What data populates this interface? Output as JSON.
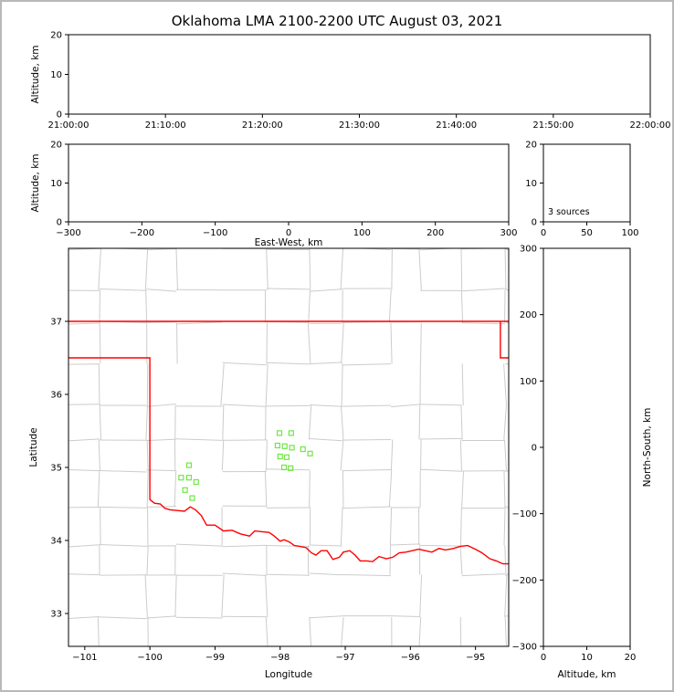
{
  "title": "Oklahoma LMA 2100-2200 UTC August 03, 2021",
  "colors": {
    "axis": "#000000",
    "state_border": "#ff0000",
    "county_lines": "#cccccc",
    "source_marker": "#70e645",
    "frame_border": "#b8b8b8",
    "background": "#ffffff"
  },
  "chart_data": [
    {
      "id": "time_height",
      "type": "scatter",
      "xlabel": "",
      "ylabel": "Altitude, km",
      "xlim": [
        0,
        6
      ],
      "xticks": [
        0,
        1,
        2,
        3,
        4,
        5,
        6
      ],
      "xtick_labels": [
        "21:00:00",
        "21:10:00",
        "21:20:00",
        "21:30:00",
        "21:40:00",
        "21:50:00",
        "22:00:00"
      ],
      "ylim": [
        0,
        20
      ],
      "yticks": [
        0,
        10,
        20
      ],
      "points": []
    },
    {
      "id": "ew_height",
      "type": "scatter",
      "xlabel": "East-West, km",
      "ylabel": "Altitude, km",
      "xlim": [
        -300,
        300
      ],
      "xticks": [
        -300,
        -200,
        -100,
        0,
        100,
        200,
        300
      ],
      "ylim": [
        0,
        20
      ],
      "yticks": [
        0,
        10,
        20
      ],
      "points": []
    },
    {
      "id": "histogram",
      "type": "line",
      "xlabel": "",
      "ylabel": "",
      "xlim": [
        0,
        100
      ],
      "xticks": [
        0,
        50,
        100
      ],
      "ylim": [
        0,
        20
      ],
      "yticks": [
        0,
        10,
        20
      ],
      "annotation": "3 sources",
      "points": []
    },
    {
      "id": "plan_view",
      "type": "scatter",
      "xlabel": "Longitude",
      "ylabel": "Latitude",
      "xlim": [
        -101.25,
        -94.49
      ],
      "xticks": [
        -101,
        -100,
        -99,
        -98,
        -97,
        -96,
        -95
      ],
      "ylim": [
        32.55,
        38.0
      ],
      "yticks": [
        33,
        34,
        35,
        36,
        37
      ],
      "marker": {
        "shape": "open-square",
        "size": 5
      },
      "points": [
        [
          -99.4,
          35.03
        ],
        [
          -99.52,
          34.86
        ],
        [
          -99.4,
          34.86
        ],
        [
          -99.29,
          34.8
        ],
        [
          -99.46,
          34.69
        ],
        [
          -99.35,
          34.58
        ],
        [
          -98.01,
          35.47
        ],
        [
          -97.83,
          35.47
        ],
        [
          -98.04,
          35.3
        ],
        [
          -97.93,
          35.29
        ],
        [
          -97.82,
          35.27
        ],
        [
          -97.65,
          35.25
        ],
        [
          -98.0,
          35.15
        ],
        [
          -97.9,
          35.14
        ],
        [
          -97.54,
          35.19
        ],
        [
          -97.94,
          35.0
        ],
        [
          -97.84,
          34.99
        ]
      ],
      "state_border_lines": [
        [
          [
            -101.25,
            37.0
          ],
          [
            -94.49,
            37.0
          ]
        ],
        [
          [
            -94.618,
            37.0
          ],
          [
            -94.618,
            36.5
          ],
          [
            -94.49,
            36.5
          ]
        ],
        [
          [
            -101.25,
            36.5
          ],
          [
            -100.0,
            36.5
          ],
          [
            -100.0,
            34.56
          ],
          [
            -99.93,
            34.51
          ],
          [
            -99.84,
            34.5
          ],
          [
            -99.77,
            34.44
          ],
          [
            -99.69,
            34.42
          ],
          [
            -99.58,
            34.41
          ],
          [
            -99.47,
            34.4
          ],
          [
            -99.38,
            34.46
          ],
          [
            -99.3,
            34.42
          ],
          [
            -99.21,
            34.34
          ],
          [
            -99.13,
            34.21
          ],
          [
            -99.0,
            34.21
          ],
          [
            -98.87,
            34.13
          ],
          [
            -98.74,
            34.14
          ],
          [
            -98.61,
            34.09
          ],
          [
            -98.47,
            34.06
          ],
          [
            -98.39,
            34.13
          ],
          [
            -98.28,
            34.12
          ],
          [
            -98.17,
            34.11
          ],
          [
            -98.09,
            34.06
          ],
          [
            -98.0,
            33.99
          ],
          [
            -97.94,
            34.01
          ],
          [
            -97.86,
            33.98
          ],
          [
            -97.78,
            33.93
          ],
          [
            -97.7,
            33.92
          ],
          [
            -97.6,
            33.9
          ],
          [
            -97.52,
            33.83
          ],
          [
            -97.45,
            33.8
          ],
          [
            -97.37,
            33.86
          ],
          [
            -97.28,
            33.86
          ],
          [
            -97.19,
            33.74
          ],
          [
            -97.09,
            33.77
          ],
          [
            -97.03,
            33.84
          ],
          [
            -96.93,
            33.86
          ],
          [
            -96.85,
            33.8
          ],
          [
            -96.77,
            33.72
          ],
          [
            -96.67,
            33.72
          ],
          [
            -96.58,
            33.71
          ],
          [
            -96.48,
            33.78
          ],
          [
            -96.37,
            33.75
          ],
          [
            -96.27,
            33.77
          ],
          [
            -96.17,
            33.83
          ],
          [
            -96.07,
            33.84
          ],
          [
            -95.97,
            33.86
          ],
          [
            -95.87,
            33.88
          ],
          [
            -95.77,
            33.86
          ],
          [
            -95.67,
            33.84
          ],
          [
            -95.56,
            33.89
          ],
          [
            -95.46,
            33.87
          ],
          [
            -95.34,
            33.89
          ],
          [
            -95.23,
            33.92
          ],
          [
            -95.12,
            33.93
          ],
          [
            -95.0,
            33.88
          ],
          [
            -94.9,
            33.83
          ],
          [
            -94.78,
            33.75
          ],
          [
            -94.68,
            33.72
          ],
          [
            -94.58,
            33.68
          ],
          [
            -94.49,
            33.68
          ]
        ]
      ]
    },
    {
      "id": "ns_height",
      "type": "scatter",
      "xlabel": "Altitude, km",
      "ylabel": "North-South, km",
      "xlim": [
        0,
        20
      ],
      "xticks": [
        0,
        10,
        20
      ],
      "ylim": [
        -300,
        300
      ],
      "yticks": [
        -300,
        -200,
        -100,
        0,
        100,
        200,
        300
      ],
      "points": []
    }
  ]
}
